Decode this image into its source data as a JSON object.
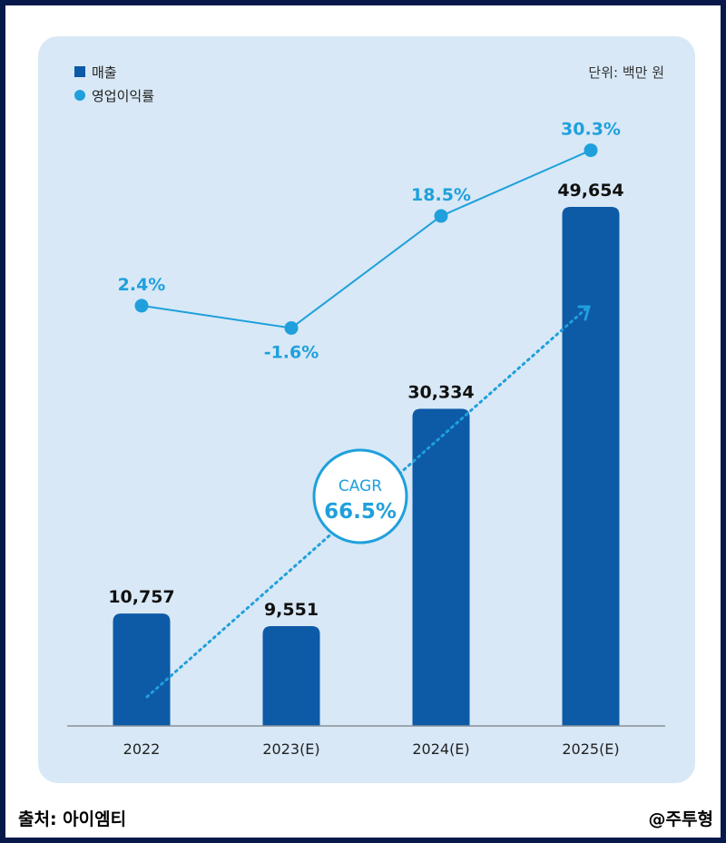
{
  "chart_data": {
    "type": "bar",
    "categories": [
      "2022",
      "2023(E)",
      "2024(E)",
      "2025(E)"
    ],
    "series": [
      {
        "name": "매출",
        "type": "bar",
        "values": [
          10757,
          9551,
          30334,
          49654
        ],
        "labels": [
          "10,757",
          "9,551",
          "30,334",
          "49,654"
        ]
      },
      {
        "name": "영업이익률",
        "type": "line",
        "values": [
          2.4,
          -1.6,
          18.5,
          30.3
        ],
        "labels": [
          "2.4%",
          "-1.6%",
          "18.5%",
          "30.3%"
        ]
      }
    ],
    "unit_note": "단위: 백만 원",
    "cagr": {
      "label": "CAGR",
      "value": "66.5%"
    },
    "legend_position": "top-left",
    "colors": {
      "bar": "#0d5aa7",
      "line": "#1fa0dc",
      "panel": "#d8e8f6",
      "frame": "#07184a"
    }
  },
  "footer": {
    "source": "출처: 아이엠티",
    "credit": "@주투형"
  }
}
